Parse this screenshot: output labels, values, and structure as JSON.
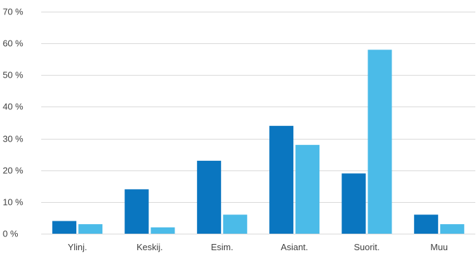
{
  "chart_data": {
    "type": "bar",
    "title": "",
    "xlabel": "",
    "ylabel": "",
    "categories": [
      "Ylinj.",
      "Keskij.",
      "Esim.",
      "Asiant.",
      "Suorit.",
      "Muu"
    ],
    "series": [
      {
        "color": "#0a76c0",
        "values": [
          4,
          14,
          23,
          34,
          19,
          6
        ]
      },
      {
        "color": "#4bbbe8",
        "values": [
          3,
          2,
          6,
          28,
          58,
          3
        ]
      }
    ],
    "ylim": [
      0,
      70
    ],
    "yticks": [
      0,
      10,
      20,
      30,
      40,
      50,
      60,
      70
    ],
    "ytick_labels": [
      "0 %",
      "10 %",
      "20 %",
      "30 %",
      "40 %",
      "50 %",
      "60 %",
      "70 %"
    ],
    "grid": true,
    "legend": "none"
  }
}
